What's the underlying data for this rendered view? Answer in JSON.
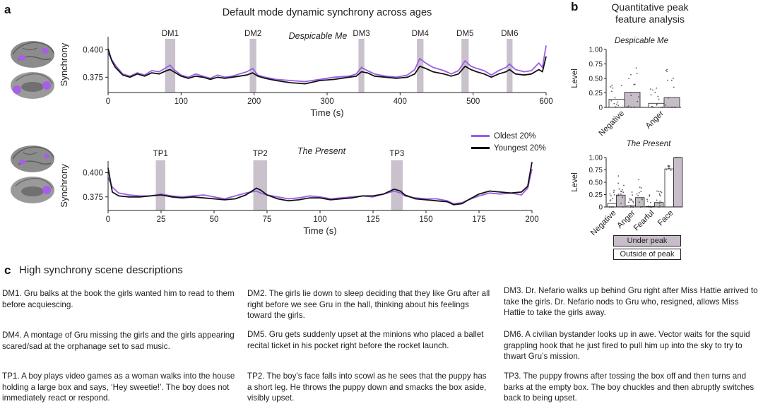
{
  "panels": {
    "a": "a",
    "b": "b",
    "c": "c"
  },
  "colors": {
    "oldest": "#9b5de5",
    "youngest": "#111111",
    "peak_band": "#c9c1cc",
    "under_peak_bar": "#c6bdc8",
    "outside_peak_bar": "#ffffff",
    "brain_gray": "#8a8a8a",
    "brain_highlight": "#a75ee8"
  },
  "legend_a": {
    "oldest": "Oldest 20%",
    "youngest": "Youngest 20%"
  },
  "legend_b": {
    "under": "Under peak",
    "outside": "Outside of peak"
  },
  "chart_data": [
    {
      "type": "line",
      "id": "despicable",
      "figure_title": "Default mode dynamic synchrony across ages",
      "title": "Despicable Me",
      "xlabel": "Time (s)",
      "ylabel": "Synchrony",
      "xlim": [
        0,
        600
      ],
      "ylim": [
        0.361,
        0.412
      ],
      "xticks": [
        0,
        100,
        200,
        300,
        400,
        500,
        600
      ],
      "yticks": [
        0.375,
        0.4
      ],
      "ytick_labels": [
        "0.375",
        "0.400"
      ],
      "peaks": [
        {
          "label": "DM1",
          "start": 78,
          "end": 92
        },
        {
          "label": "DM2",
          "start": 194,
          "end": 203
        },
        {
          "label": "DM3",
          "start": 343,
          "end": 351
        },
        {
          "label": "DM4",
          "start": 423,
          "end": 432
        },
        {
          "label": "DM5",
          "start": 484,
          "end": 494
        },
        {
          "label": "DM6",
          "start": 546,
          "end": 554
        }
      ],
      "series": [
        {
          "name": "Oldest 20%",
          "x": [
            0,
            5,
            10,
            20,
            30,
            40,
            50,
            60,
            70,
            80,
            85,
            90,
            100,
            110,
            120,
            130,
            140,
            150,
            160,
            170,
            180,
            190,
            198,
            205,
            215,
            230,
            250,
            270,
            290,
            310,
            330,
            340,
            347,
            355,
            365,
            380,
            395,
            410,
            420,
            427,
            435,
            445,
            460,
            470,
            480,
            489,
            497,
            505,
            515,
            525,
            535,
            545,
            550,
            558,
            570,
            580,
            590,
            595,
            600
          ],
          "values": [
            0.397,
            0.391,
            0.386,
            0.378,
            0.376,
            0.379,
            0.377,
            0.381,
            0.38,
            0.384,
            0.386,
            0.382,
            0.377,
            0.375,
            0.378,
            0.376,
            0.374,
            0.377,
            0.375,
            0.376,
            0.378,
            0.38,
            0.383,
            0.377,
            0.375,
            0.373,
            0.372,
            0.371,
            0.373,
            0.375,
            0.376,
            0.378,
            0.384,
            0.381,
            0.378,
            0.376,
            0.375,
            0.377,
            0.382,
            0.392,
            0.388,
            0.384,
            0.381,
            0.378,
            0.381,
            0.39,
            0.385,
            0.383,
            0.381,
            0.377,
            0.381,
            0.384,
            0.387,
            0.382,
            0.38,
            0.381,
            0.388,
            0.384,
            0.404
          ]
        },
        {
          "name": "Youngest 20%",
          "x": [
            0,
            5,
            10,
            20,
            30,
            40,
            50,
            60,
            70,
            80,
            85,
            90,
            100,
            110,
            120,
            130,
            140,
            150,
            160,
            170,
            180,
            190,
            198,
            205,
            215,
            230,
            250,
            270,
            290,
            310,
            330,
            340,
            347,
            355,
            365,
            380,
            395,
            410,
            420,
            427,
            435,
            445,
            460,
            470,
            480,
            489,
            497,
            505,
            515,
            525,
            535,
            545,
            550,
            558,
            570,
            580,
            590,
            595,
            600
          ],
          "values": [
            0.401,
            0.39,
            0.384,
            0.377,
            0.375,
            0.378,
            0.376,
            0.379,
            0.378,
            0.381,
            0.382,
            0.38,
            0.376,
            0.374,
            0.376,
            0.375,
            0.373,
            0.375,
            0.374,
            0.375,
            0.376,
            0.377,
            0.379,
            0.376,
            0.374,
            0.372,
            0.37,
            0.369,
            0.372,
            0.373,
            0.375,
            0.376,
            0.38,
            0.379,
            0.376,
            0.375,
            0.374,
            0.375,
            0.378,
            0.385,
            0.383,
            0.38,
            0.378,
            0.376,
            0.378,
            0.385,
            0.382,
            0.38,
            0.378,
            0.375,
            0.378,
            0.38,
            0.382,
            0.378,
            0.377,
            0.378,
            0.382,
            0.38,
            0.394
          ]
        }
      ]
    },
    {
      "type": "line",
      "id": "present",
      "title": "The Present",
      "xlabel": "Time (s)",
      "ylabel": "Synchrony",
      "xlim": [
        0,
        200
      ],
      "ylim": [
        0.361,
        0.412
      ],
      "xticks": [
        0,
        25,
        50,
        75,
        100,
        125,
        150,
        175,
        200
      ],
      "yticks": [
        0.375,
        0.4
      ],
      "ytick_labels": [
        "0.375",
        "0.400"
      ],
      "peaks": [
        {
          "label": "TP1",
          "start": 22.5,
          "end": 27
        },
        {
          "label": "TP2",
          "start": 68.5,
          "end": 75
        },
        {
          "label": "TP3",
          "start": 133.5,
          "end": 139
        }
      ],
      "series": [
        {
          "name": "Oldest 20%",
          "x": [
            0,
            2,
            5,
            10,
            15,
            20,
            25,
            30,
            35,
            40,
            45,
            50,
            55,
            60,
            65,
            70,
            72,
            75,
            80,
            85,
            90,
            95,
            100,
            105,
            110,
            115,
            120,
            125,
            130,
            135,
            138,
            140,
            145,
            150,
            155,
            160,
            163,
            167,
            170,
            175,
            180,
            185,
            190,
            195,
            198,
            200
          ],
          "values": [
            0.395,
            0.385,
            0.379,
            0.377,
            0.376,
            0.376,
            0.378,
            0.376,
            0.375,
            0.376,
            0.377,
            0.375,
            0.373,
            0.376,
            0.379,
            0.381,
            0.379,
            0.377,
            0.375,
            0.373,
            0.374,
            0.376,
            0.375,
            0.373,
            0.374,
            0.375,
            0.376,
            0.375,
            0.378,
            0.381,
            0.379,
            0.376,
            0.374,
            0.373,
            0.373,
            0.371,
            0.368,
            0.369,
            0.372,
            0.376,
            0.379,
            0.378,
            0.379,
            0.377,
            0.384,
            0.404
          ]
        },
        {
          "name": "Youngest 20%",
          "x": [
            0,
            2,
            5,
            10,
            15,
            20,
            25,
            30,
            35,
            40,
            45,
            50,
            55,
            60,
            65,
            70,
            72,
            75,
            80,
            85,
            90,
            95,
            100,
            105,
            110,
            115,
            120,
            125,
            130,
            135,
            138,
            140,
            145,
            150,
            155,
            160,
            163,
            167,
            170,
            175,
            180,
            185,
            190,
            195,
            198,
            200
          ],
          "values": [
            0.405,
            0.38,
            0.376,
            0.375,
            0.375,
            0.376,
            0.377,
            0.375,
            0.374,
            0.375,
            0.374,
            0.373,
            0.372,
            0.373,
            0.377,
            0.384,
            0.382,
            0.377,
            0.373,
            0.371,
            0.372,
            0.374,
            0.374,
            0.372,
            0.373,
            0.374,
            0.376,
            0.376,
            0.378,
            0.383,
            0.381,
            0.377,
            0.373,
            0.372,
            0.371,
            0.37,
            0.367,
            0.368,
            0.372,
            0.378,
            0.381,
            0.38,
            0.379,
            0.38,
            0.386,
            0.411
          ]
        }
      ]
    },
    {
      "type": "bar",
      "id": "peak-dm",
      "figure_title": "Quantitative peak feature analysis",
      "title": "Despicable Me",
      "ylabel": "Level",
      "ylim": [
        0,
        1
      ],
      "yticks": [
        0,
        0.25,
        0.5,
        0.75,
        1
      ],
      "ytick_labels": [
        "0",
        "0.25",
        "0.50",
        "0.75",
        "1.00"
      ],
      "categories": [
        "Negative",
        "Anger"
      ],
      "series": [
        {
          "name": "Outside of peak",
          "values": [
            0.14,
            0.07
          ]
        },
        {
          "name": "Under peak",
          "values": [
            0.26,
            0.17
          ]
        }
      ]
    },
    {
      "type": "bar",
      "id": "peak-tp",
      "title": "The Present",
      "ylabel": "Level",
      "ylim": [
        0,
        1
      ],
      "yticks": [
        0,
        0.25,
        0.5,
        0.75,
        1
      ],
      "ytick_labels": [
        "0",
        "0.25",
        "0.50",
        "0.75",
        "1.00"
      ],
      "categories": [
        "Negative",
        "Anger",
        "Fearful",
        "Face"
      ],
      "series": [
        {
          "name": "Outside of peak",
          "values": [
            0.07,
            0.03,
            0.01,
            0.77
          ]
        },
        {
          "name": "Under peak",
          "values": [
            0.24,
            0.19,
            0.09,
            1.0
          ]
        }
      ]
    }
  ],
  "descriptions": {
    "title": "High synchrony scene descriptions",
    "items": [
      "DM1. Gru balks at the book the girls wanted him to read to them before acquiescing.",
      "DM2. The girls lie down to sleep deciding that they like Gru after all right before we see Gru in the hall, thinking about his feelings toward the girls.",
      "DM3. Dr. Nefario walks up behind Gru right after Miss Hattie arrived to take the girls. Dr. Nefario nods to Gru who, resigned, allows Miss Hattie to take the girls away.",
      "DM4. A montage of Gru missing the girls and the girls appearing scared/sad at the orphanage set to sad music.",
      "DM5. Gru gets suddenly upset at the minions who placed a ballet recital ticket in his pocket right before the rocket launch.",
      "DM6. A civilian bystander looks up in awe. Vector waits for the squid grappling hook that he just fired to pull him up into the sky to try to thwart Gru’s mission.",
      "TP1. A boy plays video games as a woman walks into the house holding a large box and says, ‘Hey sweetie!’. The boy does not immediately react or respond.",
      "TP2. The boy’s face falls into scowl as he sees that the puppy has a short leg. He throws the puppy down and smacks the box aside, visibly upset.",
      "TP3. The puppy frowns after tossing the box off and then turns and barks at the empty box. The boy chuckles and then abruptly switches back to being upset."
    ]
  }
}
